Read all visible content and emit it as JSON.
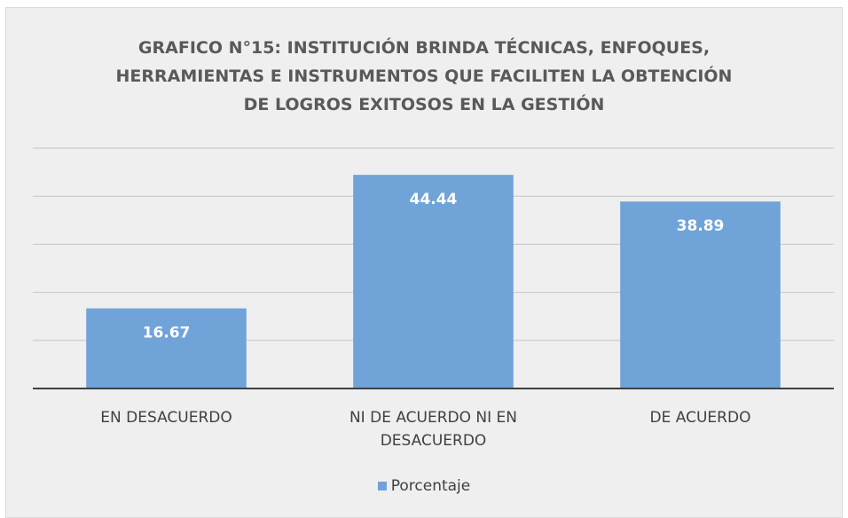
{
  "chart_data": {
    "type": "bar",
    "title": "GRAFICO N°15: INSTITUCIÓN BRINDA TÉCNICAS, ENFOQUES, HERRAMIENTAS E INSTRUMENTOS QUE FACILITEN LA OBTENCIÓN DE LOGROS EXITOSOS EN LA GESTIÓN",
    "categories": [
      "EN DESACUERDO",
      "NI DE ACUERDO NI EN DESACUERDO",
      "DE ACUERDO"
    ],
    "series": [
      {
        "name": "Porcentaje",
        "color": "#70a3d8",
        "values": [
          16.67,
          44.44,
          38.89
        ]
      }
    ],
    "ylim": [
      0,
      50
    ],
    "yticks": [
      0,
      10,
      20,
      30,
      40,
      50
    ],
    "grid": true,
    "legend": "bottom"
  }
}
